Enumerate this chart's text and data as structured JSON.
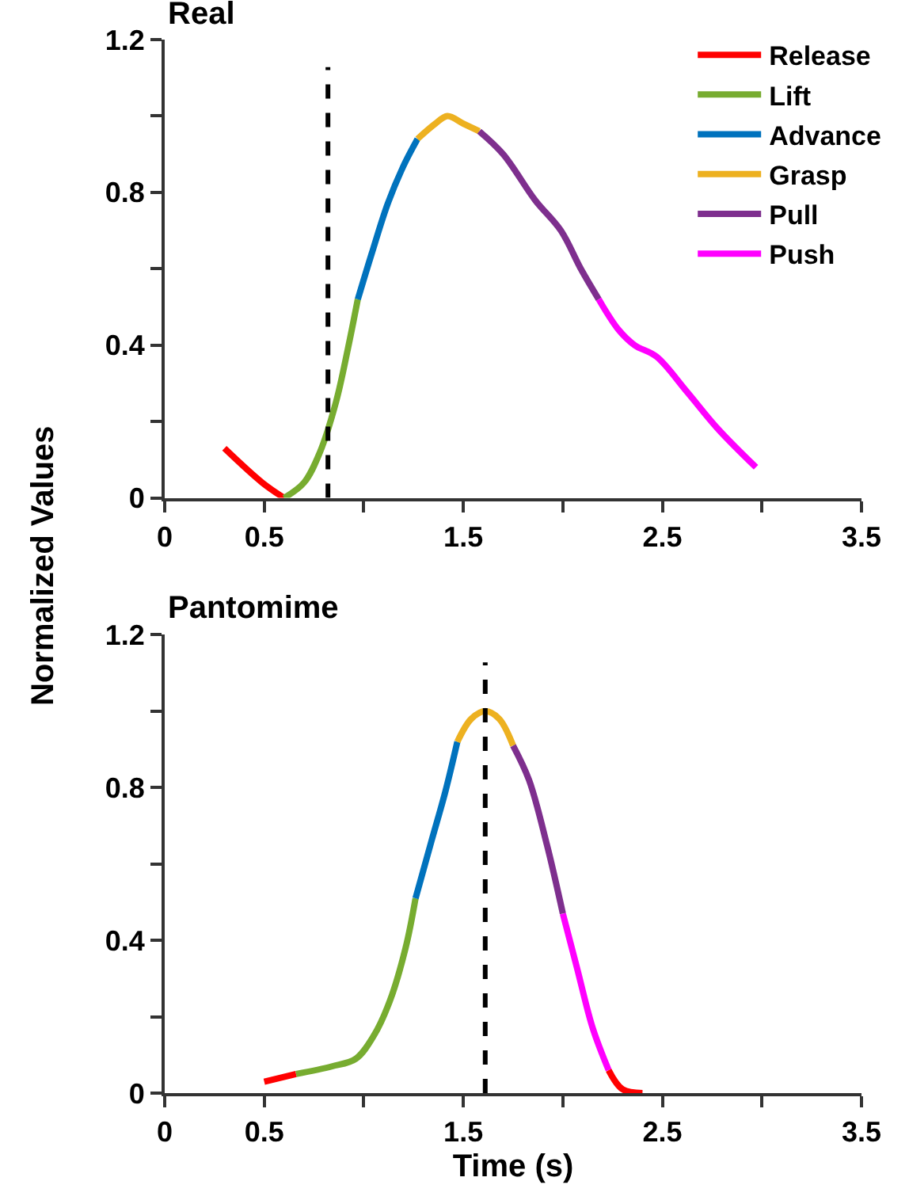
{
  "chart_data": [
    {
      "type": "line",
      "title": "Real",
      "ylabel": "Normalized Values",
      "legend": "top right",
      "line_style": "solid",
      "marker": "none",
      "tick_labels": "xy",
      "xlim": [
        0,
        3.5
      ],
      "xticks": [
        0,
        0.5,
        {
          "value": 1,
          "label": null
        },
        1.5,
        {
          "value": 2,
          "label": null
        },
        2.5,
        {
          "value": 3,
          "label": null
        },
        3.5
      ],
      "ylim": [
        0,
        1.2
      ],
      "yticks": [
        0,
        {
          "value": 0.2,
          "label": null
        },
        0.4,
        {
          "value": 0.6,
          "label": null
        },
        0.8,
        {
          "value": 1.0,
          "label": null
        },
        1.2
      ],
      "ref_lines": [
        {
          "axis": "x",
          "value": 0.82,
          "color": "#000000",
          "line_style": "dashed"
        }
      ],
      "series": [
        {
          "name": "Release",
          "color": "#ff0000",
          "x": [
            0.3,
            0.49,
            0.6
          ],
          "values": [
            0.13,
            0.04,
            0.0
          ]
        },
        {
          "name": "Lift",
          "color": "#77ac30",
          "x": [
            0.6,
            0.7,
            0.78,
            0.86,
            0.92,
            0.97
          ],
          "values": [
            0.0,
            0.04,
            0.12,
            0.25,
            0.39,
            0.52
          ]
        },
        {
          "name": "Advance",
          "color": "#0072bd",
          "x": [
            0.97,
            1.04,
            1.12,
            1.2,
            1.27
          ],
          "values": [
            0.52,
            0.64,
            0.77,
            0.87,
            0.94
          ]
        },
        {
          "name": "Grasp",
          "color": "#edb120",
          "x": [
            1.27,
            1.36,
            1.42,
            1.5,
            1.58
          ],
          "values": [
            0.94,
            0.98,
            1.0,
            0.98,
            0.96
          ]
        },
        {
          "name": "Pull",
          "color": "#7e2f8e",
          "x": [
            1.58,
            1.7,
            1.86,
            1.99,
            2.09,
            2.18
          ],
          "values": [
            0.96,
            0.9,
            0.78,
            0.7,
            0.6,
            0.52
          ]
        },
        {
          "name": "Push",
          "color": "#ff00ff",
          "x": [
            2.18,
            2.28,
            2.36,
            2.47,
            2.62,
            2.78,
            2.97
          ],
          "values": [
            0.52,
            0.44,
            0.4,
            0.37,
            0.28,
            0.18,
            0.08
          ]
        }
      ]
    },
    {
      "type": "line",
      "title": "Pantomime",
      "xlabel": "Time (s)",
      "legend": false,
      "line_style": "solid",
      "marker": "none",
      "xlim": [
        0,
        3.5
      ],
      "xticks": [
        0,
        0.5,
        {
          "value": 1,
          "label": null
        },
        1.5,
        {
          "value": 2,
          "label": null
        },
        2.5,
        {
          "value": 3,
          "label": null
        },
        3.5
      ],
      "ylim": [
        0,
        1.2
      ],
      "yticks": [
        0,
        {
          "value": 0.2,
          "label": null
        },
        0.4,
        {
          "value": 0.6,
          "label": null
        },
        0.8,
        {
          "value": 1.0,
          "label": null
        },
        1.2
      ],
      "ref_lines": [
        {
          "axis": "x",
          "value": 1.61,
          "color": "#000000",
          "line_style": "dashed"
        }
      ],
      "series": [
        {
          "color": "#ff0000",
          "x": [
            0.5,
            0.66
          ],
          "values": [
            0.03,
            0.05
          ]
        },
        {
          "color": "#77ac30",
          "x": [
            0.66,
            0.84,
            0.96,
            1.05,
            1.13,
            1.21,
            1.26
          ],
          "values": [
            0.05,
            0.07,
            0.09,
            0.15,
            0.24,
            0.38,
            0.51
          ]
        },
        {
          "color": "#0072bd",
          "x": [
            1.26,
            1.34,
            1.41,
            1.47
          ],
          "values": [
            0.51,
            0.66,
            0.79,
            0.92
          ]
        },
        {
          "color": "#edb120",
          "x": [
            1.47,
            1.54,
            1.61,
            1.68,
            1.75
          ],
          "values": [
            0.92,
            0.98,
            1.0,
            0.98,
            0.91
          ]
        },
        {
          "color": "#7e2f8e",
          "x": [
            1.75,
            1.83,
            1.92,
            2.0
          ],
          "values": [
            0.91,
            0.82,
            0.65,
            0.47
          ]
        },
        {
          "color": "#ff00ff",
          "x": [
            2.0,
            2.07,
            2.15,
            2.23
          ],
          "values": [
            0.47,
            0.33,
            0.17,
            0.06
          ]
        },
        {
          "color": "#ff0000",
          "x": [
            2.23,
            2.3,
            2.4
          ],
          "values": [
            0.06,
            0.01,
            0.0
          ]
        }
      ]
    }
  ]
}
